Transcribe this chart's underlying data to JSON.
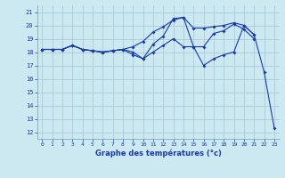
{
  "xlabel": "Graphe des températures (°c)",
  "bg_color": "#cce8f0",
  "grid_color": "#aaccd8",
  "line_color": "#1a3aab",
  "xlim": [
    -0.5,
    23.5
  ],
  "ylim": [
    11.5,
    21.5
  ],
  "xticks": [
    0,
    1,
    2,
    3,
    4,
    5,
    6,
    7,
    8,
    9,
    10,
    11,
    12,
    13,
    14,
    15,
    16,
    17,
    18,
    19,
    20,
    21,
    22,
    23
  ],
  "yticks": [
    12,
    13,
    14,
    15,
    16,
    17,
    18,
    19,
    20,
    21
  ],
  "series1_x": [
    0,
    1,
    2,
    3,
    4,
    5,
    6,
    7,
    8,
    9,
    10,
    11,
    12,
    13,
    14,
    15,
    16,
    17,
    18,
    19,
    20,
    21
  ],
  "series1_y": [
    18.2,
    18.2,
    18.2,
    18.5,
    18.2,
    18.1,
    18.0,
    18.1,
    18.2,
    18.4,
    18.8,
    19.5,
    19.9,
    20.4,
    20.6,
    19.8,
    19.8,
    19.9,
    20.0,
    20.2,
    20.0,
    19.3
  ],
  "series2_x": [
    0,
    1,
    2,
    3,
    4,
    5,
    6,
    7,
    8,
    9,
    10,
    11,
    12,
    13,
    14,
    15,
    16,
    17,
    18,
    19,
    20,
    21
  ],
  "series2_y": [
    18.2,
    18.2,
    18.2,
    18.5,
    18.2,
    18.1,
    18.0,
    18.1,
    18.2,
    17.8,
    17.5,
    18.6,
    19.2,
    20.5,
    20.6,
    18.4,
    18.4,
    19.4,
    19.6,
    20.1,
    19.7,
    19.0
  ],
  "series3_x": [
    0,
    1,
    2,
    3,
    4,
    5,
    6,
    7,
    8,
    9,
    10,
    11,
    12,
    13,
    14,
    15,
    16,
    17,
    18,
    19,
    20,
    21,
    22,
    23
  ],
  "series3_y": [
    18.2,
    18.2,
    18.2,
    18.5,
    18.2,
    18.1,
    18.0,
    18.1,
    18.2,
    18.0,
    17.5,
    18.0,
    18.5,
    19.0,
    18.4,
    18.4,
    17.0,
    17.5,
    17.8,
    18.0,
    20.0,
    19.3,
    16.5,
    12.3
  ]
}
